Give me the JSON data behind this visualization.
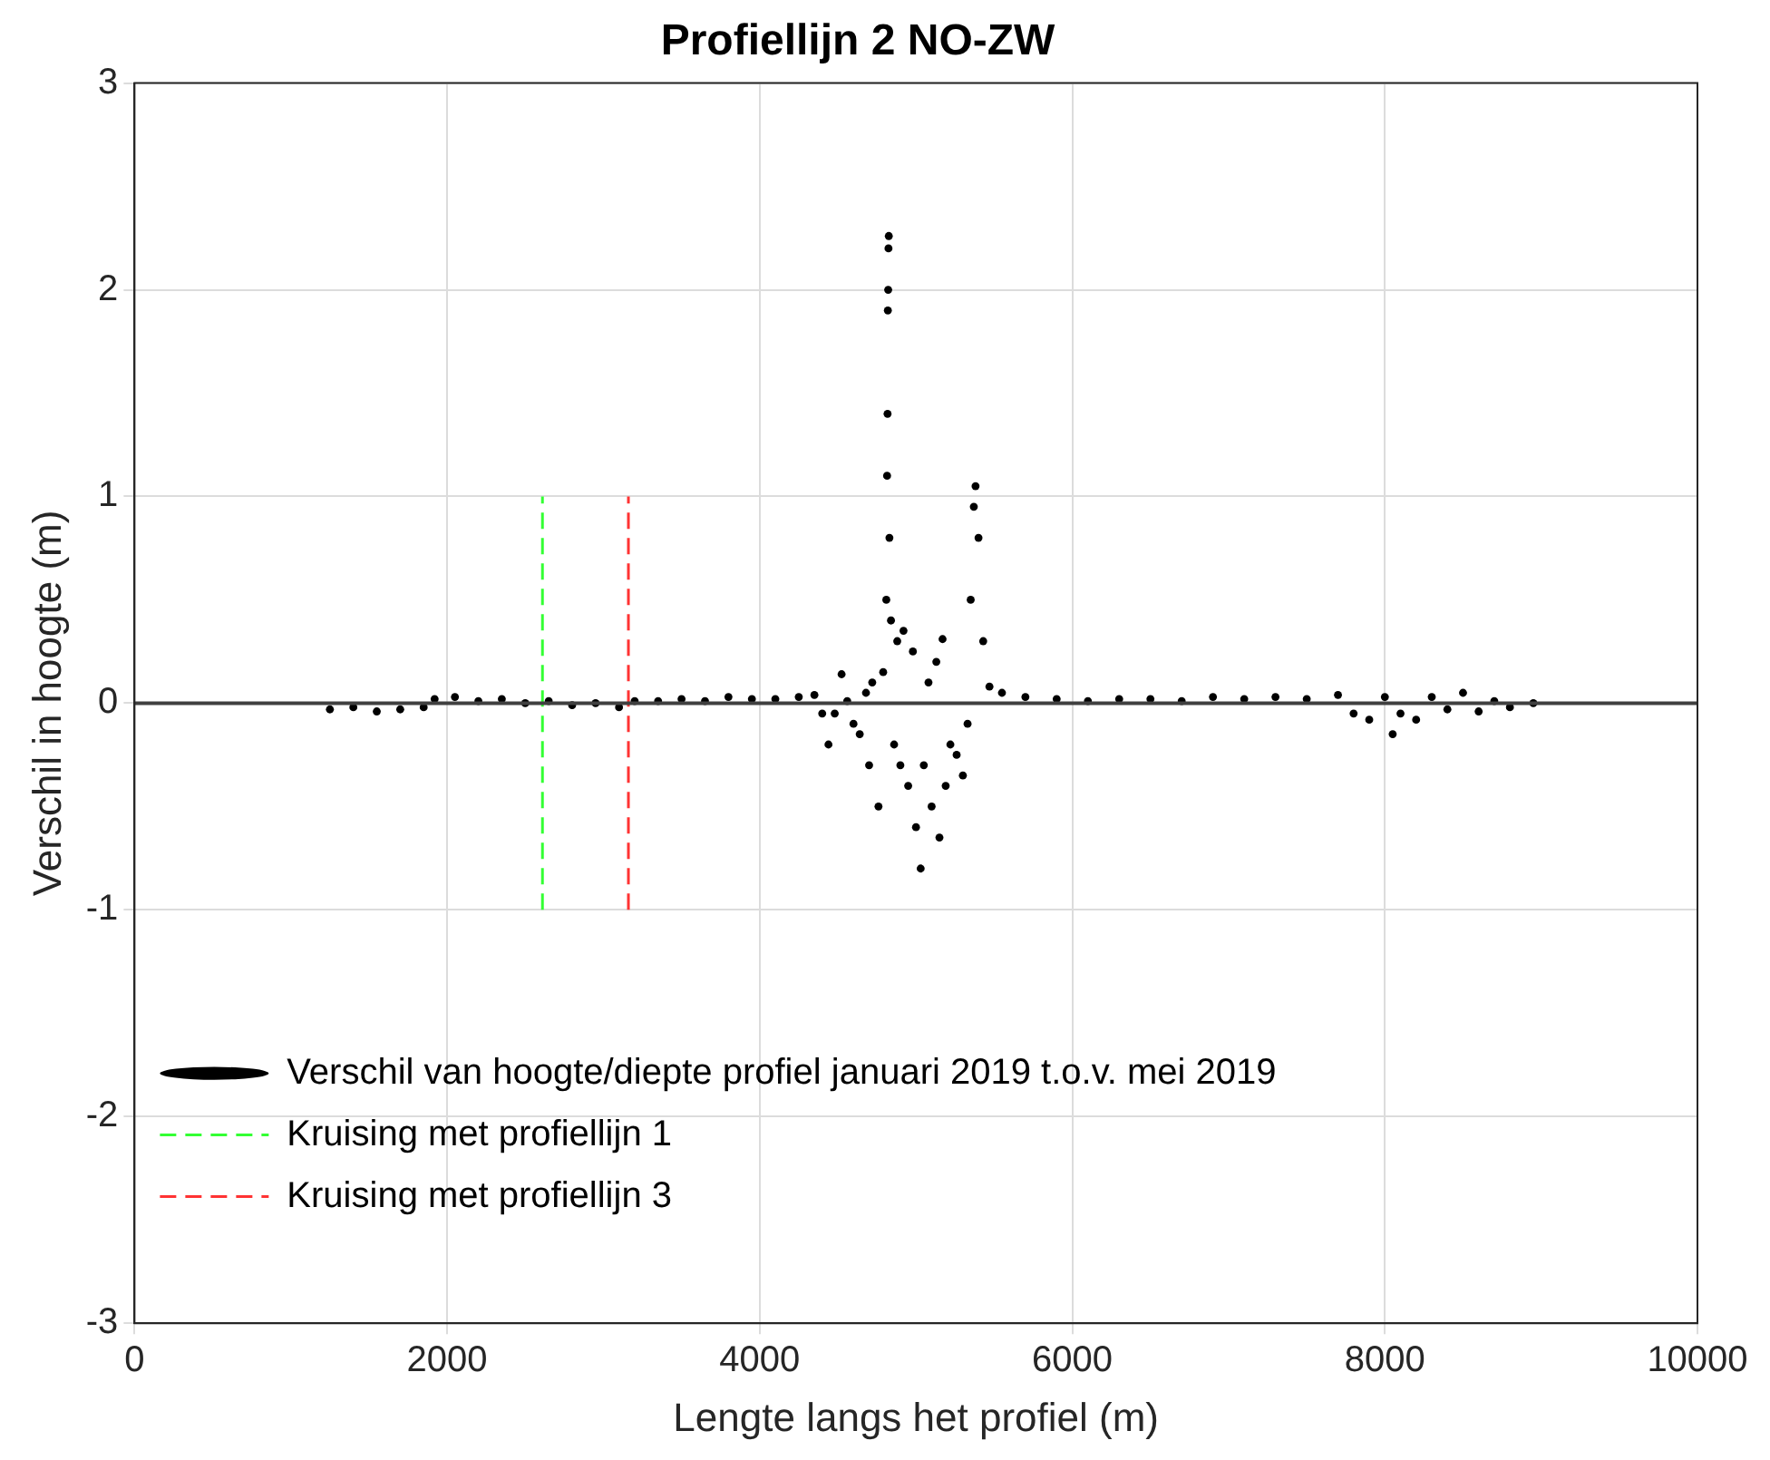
{
  "chart_data": {
    "type": "scatter",
    "title": "Profiellijn 2 NO-ZW",
    "xlabel": "Lengte langs het profiel (m)",
    "ylabel": "Verschil in hoogte (m)",
    "xlim": [
      0,
      10000
    ],
    "xticks": [
      0,
      2000,
      4000,
      6000,
      8000,
      10000
    ],
    "ylim": [
      -3,
      3
    ],
    "yticks": [
      -3,
      -2,
      -1,
      0,
      1,
      2,
      3
    ],
    "grid": true,
    "legend": "bottom left",
    "ref_lines": [
      {
        "axis": "y",
        "value": 0,
        "color": "#404040"
      }
    ],
    "series": [
      {
        "name": "Verschil van hoogte/diepte profiel januari 2019 t.o.v. mei 2019",
        "marker": "circle",
        "color": "#000000",
        "x": [
          1250,
          1400,
          1550,
          1700,
          1850,
          1920,
          2050,
          2200,
          2350,
          2500,
          2650,
          2800,
          2950,
          3100,
          3200,
          3350,
          3500,
          3650,
          3800,
          3950,
          4100,
          4250,
          4350,
          4400,
          4440,
          4480,
          4524,
          4560,
          4600,
          4640,
          4680,
          4700,
          4720,
          4760,
          4790,
          4810,
          4815,
          4818,
          4820,
          4822,
          4824,
          4826,
          4830,
          4840,
          4860,
          4880,
          4900,
          4920,
          4950,
          4980,
          5000,
          5030,
          5050,
          5080,
          5100,
          5130,
          5150,
          5170,
          5190,
          5220,
          5260,
          5300,
          5330,
          5350,
          5370,
          5381,
          5400,
          5430,
          5470,
          5550,
          5700,
          5900,
          6100,
          6300,
          6500,
          6700,
          6900,
          7100,
          7300,
          7500,
          7700,
          7800,
          7900,
          8000,
          8050,
          8100,
          8200,
          8300,
          8400,
          8500,
          8600,
          8700,
          8800,
          8950
        ],
        "values": [
          -0.03,
          -0.02,
          -0.04,
          -0.03,
          -0.02,
          0.02,
          0.03,
          0.01,
          0.02,
          0,
          0.01,
          -0.01,
          0,
          -0.02,
          0.01,
          0.01,
          0.02,
          0.01,
          0.03,
          0.02,
          0.02,
          0.03,
          0.04,
          -0.05,
          -0.2,
          -0.05,
          0.14,
          0.01,
          -0.1,
          -0.15,
          0.05,
          -0.3,
          0.1,
          -0.5,
          0.15,
          0.5,
          1.1,
          1.4,
          1.9,
          2.0,
          2.2,
          2.26,
          0.8,
          0.4,
          -0.2,
          0.3,
          -0.3,
          0.35,
          -0.4,
          0.25,
          -0.6,
          -0.8,
          -0.3,
          0.1,
          -0.5,
          0.2,
          -0.65,
          0.31,
          -0.4,
          -0.2,
          -0.25,
          -0.35,
          -0.1,
          0.5,
          0.95,
          1.05,
          0.8,
          0.3,
          0.08,
          0.05,
          0.03,
          0.02,
          0.01,
          0.02,
          0.02,
          0.01,
          0.03,
          0.02,
          0.03,
          0.02,
          0.04,
          -0.05,
          -0.08,
          0.03,
          -0.15,
          -0.05,
          -0.08,
          0.03,
          -0.03,
          0.05,
          -0.04,
          0.01,
          -0.02,
          0
        ]
      },
      {
        "name": "Kruising met profiellijn 1",
        "type": "line",
        "line_style": "dashed",
        "marker": "none",
        "color": "#33ff33",
        "x": [
          2610,
          2610
        ],
        "values": [
          -1,
          1
        ]
      },
      {
        "name": "Kruising met profiellijn 3",
        "type": "line",
        "line_style": "dashed",
        "marker": "none",
        "color": "#ff3333",
        "x": [
          3160,
          3160
        ],
        "values": [
          -1,
          1
        ]
      }
    ]
  }
}
